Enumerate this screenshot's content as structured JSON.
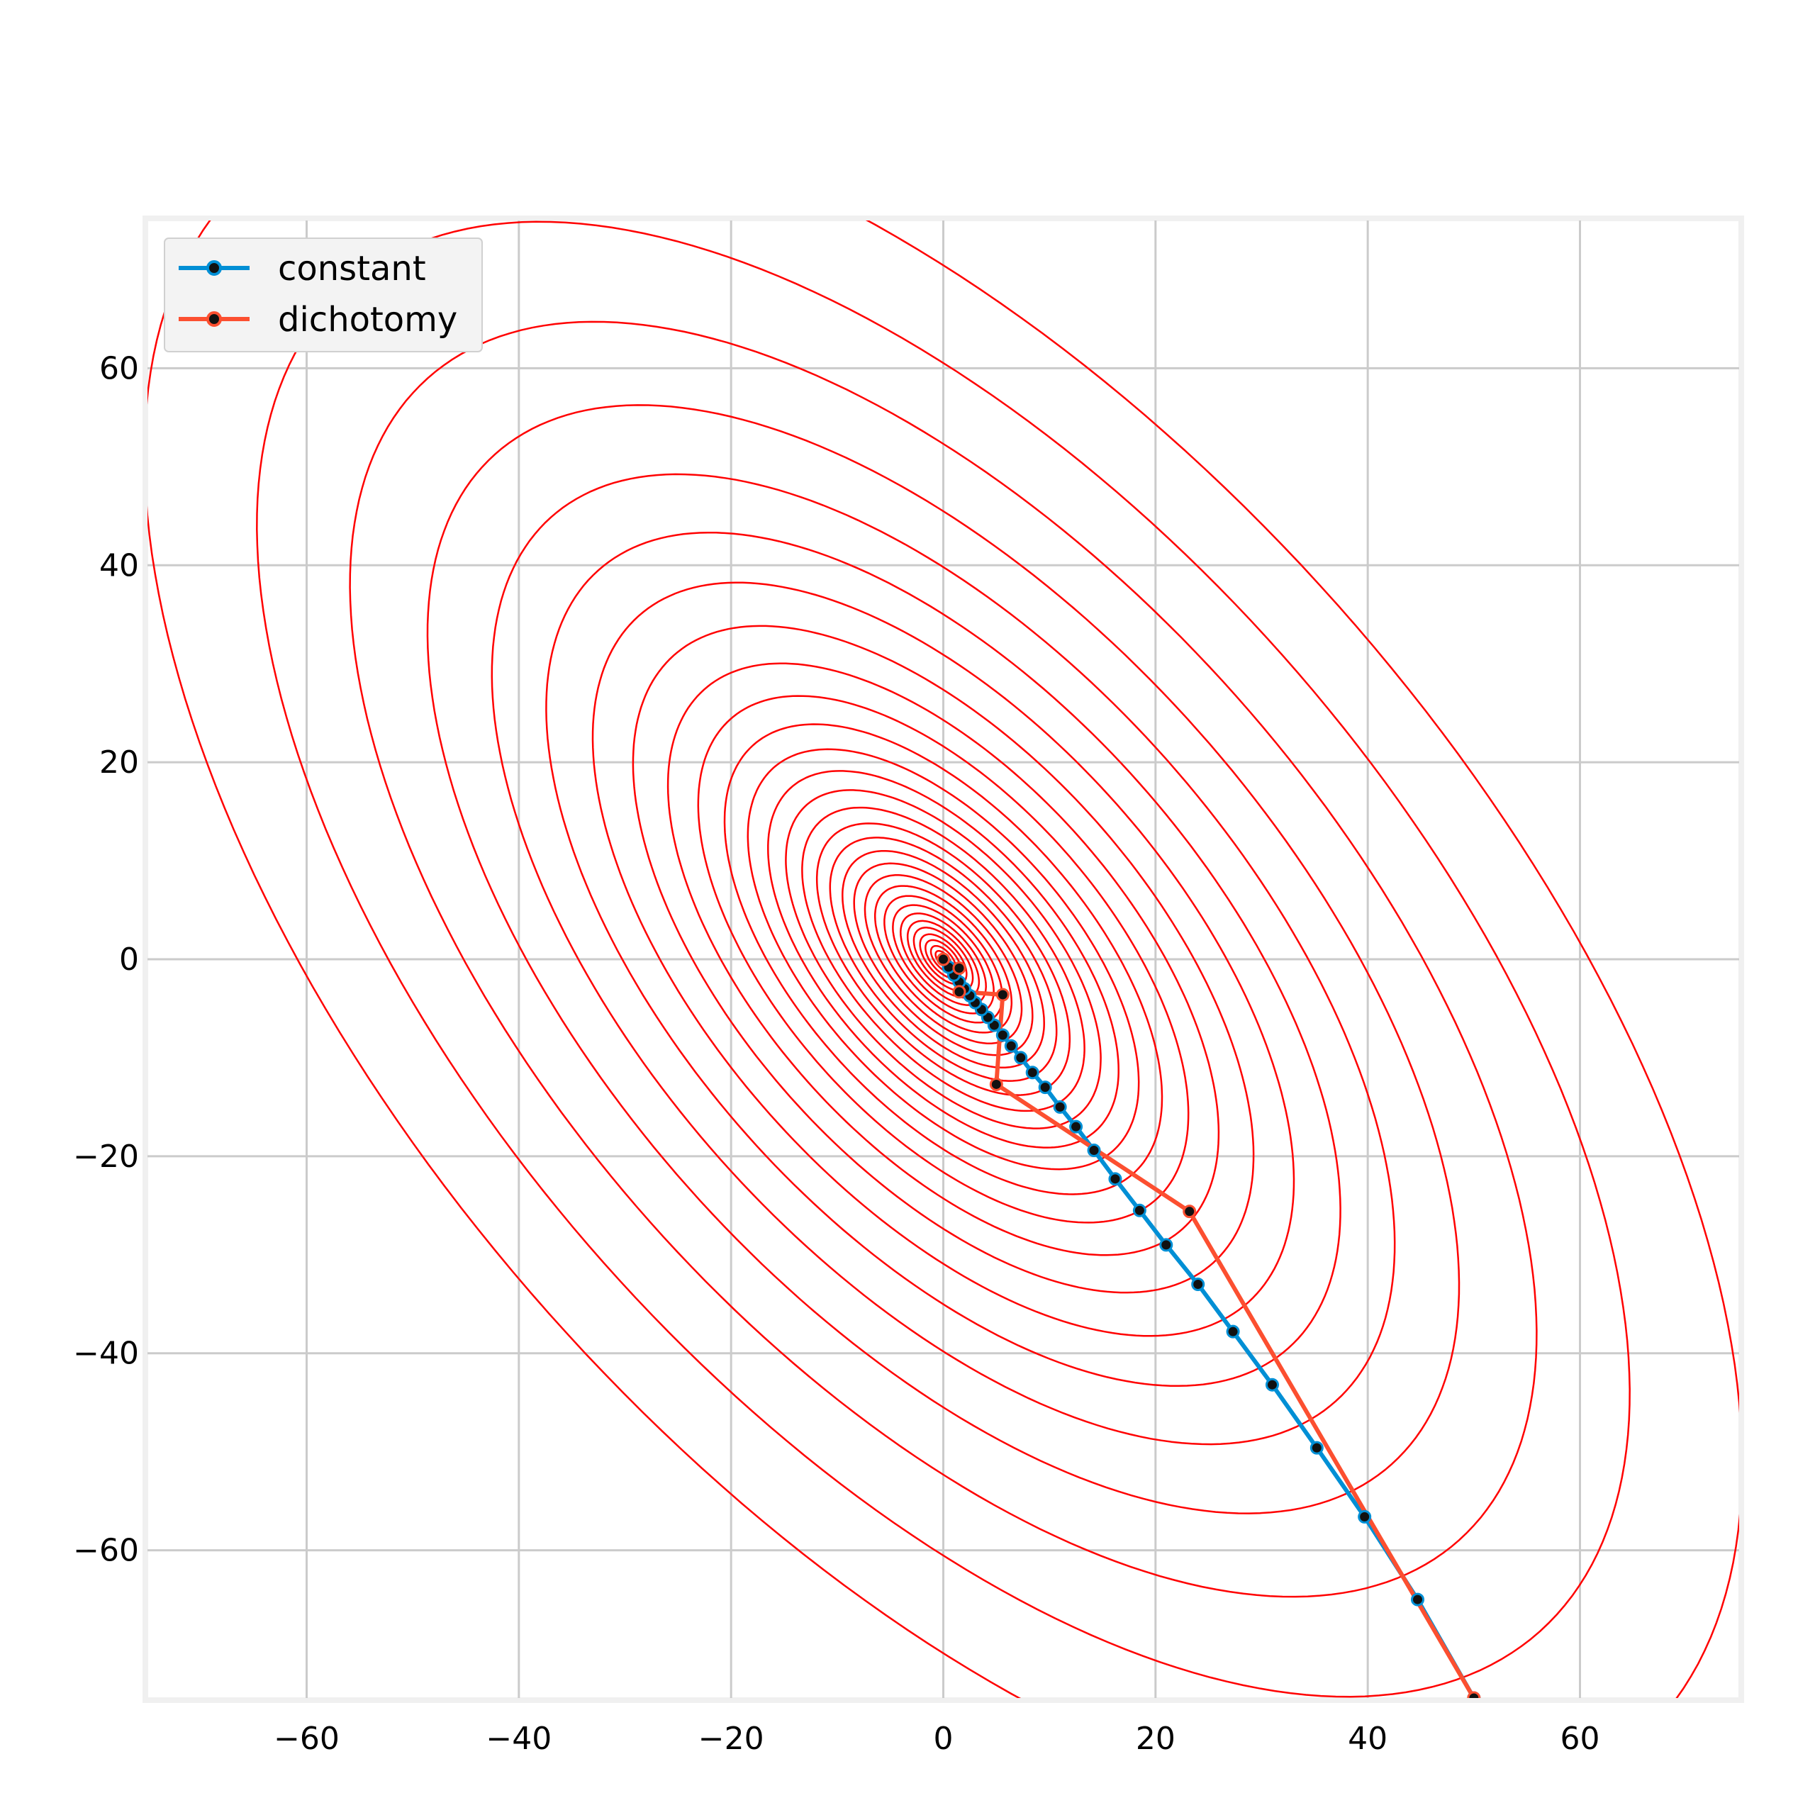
{
  "chart_data": {
    "type": "line",
    "title": "",
    "xlabel": "",
    "ylabel": "",
    "xlim": [
      -75,
      75
    ],
    "ylim": [
      -75,
      75
    ],
    "xticks": [
      -60,
      -40,
      -20,
      0,
      20,
      40,
      60
    ],
    "yticks": [
      60,
      40,
      20,
      0,
      -20,
      -40,
      -60
    ],
    "xtick_labels": [
      "−60",
      "−40",
      "−20",
      "0",
      "20",
      "40",
      "60"
    ],
    "ytick_labels": [
      "60",
      "40",
      "20",
      "0",
      "−20",
      "−40",
      "−60"
    ],
    "grid": true,
    "legend_position": "top-left",
    "contours": {
      "color": "#ff0000",
      "center": [
        0,
        0
      ],
      "orientation_deg": -52,
      "axis_ratio": 0.5,
      "semi_major_axes": [
        1,
        1.6,
        2.3,
        3,
        3.8,
        4.6,
        5.5,
        6.5,
        7.6,
        8.8,
        10.1,
        11.5,
        13,
        14.6,
        16.3,
        18.2,
        20.3,
        22.6,
        25.2,
        28.2,
        31.6,
        35.5,
        40,
        45.2,
        51.2,
        58.2,
        66.5,
        76.5,
        88.5,
        103
      ]
    },
    "series": [
      {
        "name": "constant",
        "color": "#008fd5",
        "marker": "o",
        "x": [
          50.0,
          44.7,
          39.7,
          35.2,
          31.0,
          27.3,
          24.0,
          21.0,
          18.5,
          16.2,
          14.2,
          12.5,
          11.0,
          9.6,
          8.4,
          7.3,
          6.4,
          5.6,
          4.8,
          4.2,
          3.6,
          3.0,
          2.5,
          2.0,
          1.5,
          1.0,
          0.5,
          0.0
        ],
        "y": [
          -75.0,
          -65.0,
          -56.6,
          -49.6,
          -43.2,
          -37.8,
          -33.0,
          -29.0,
          -25.5,
          -22.3,
          -19.4,
          -17.0,
          -15.0,
          -13.0,
          -11.5,
          -10.0,
          -8.8,
          -7.7,
          -6.7,
          -5.9,
          -5.1,
          -4.4,
          -3.7,
          -3.0,
          -2.3,
          -1.6,
          -0.8,
          0.0
        ]
      },
      {
        "name": "dichotomy",
        "color": "#fc4f30",
        "marker": "o",
        "x": [
          50.0,
          23.2,
          5.0,
          5.6,
          1.5,
          1.5,
          0.0
        ],
        "y": [
          -75.0,
          -25.6,
          -12.7,
          -3.6,
          -3.3,
          -0.9,
          0.0
        ]
      }
    ]
  }
}
